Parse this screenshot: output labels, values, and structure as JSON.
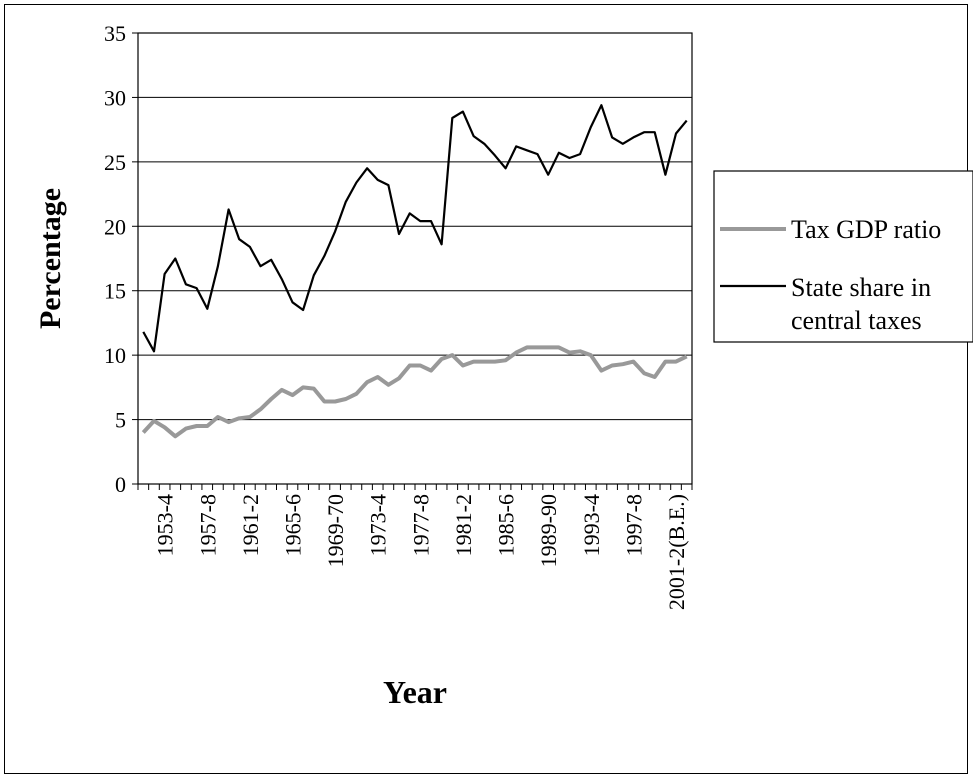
{
  "chart_data": {
    "type": "line",
    "xlabel": "Year",
    "ylabel": "Percentage",
    "ylim": [
      0,
      35
    ],
    "yticks": [
      0,
      5,
      10,
      15,
      20,
      25,
      30,
      35
    ],
    "grid": "horizontal",
    "legend_position": "right",
    "x_tick_labels": [
      "1953-4",
      "1957-8",
      "1961-2",
      "1965-6",
      "1969-70",
      "1973-4",
      "1977-8",
      "1981-2",
      "1985-6",
      "1989-90",
      "1993-4",
      "1997-8",
      "2001-2(B.E.)"
    ],
    "series": [
      {
        "name": "Tax GDP ratio",
        "color": "#999999",
        "values": [
          4.0,
          4.9,
          4.4,
          3.7,
          4.3,
          4.5,
          4.5,
          5.2,
          4.8,
          5.1,
          5.2,
          5.8,
          6.6,
          7.3,
          6.9,
          7.5,
          7.4,
          6.4,
          6.4,
          6.6,
          7.0,
          7.9,
          8.3,
          7.7,
          8.2,
          9.2,
          9.2,
          8.8,
          9.7,
          10.0,
          9.2,
          9.5,
          9.5,
          9.5,
          9.6,
          10.2,
          10.6,
          10.6,
          10.6,
          10.6,
          10.2,
          10.3,
          10.0,
          8.8,
          9.2,
          9.3,
          9.5,
          8.6,
          8.3,
          9.5,
          9.5,
          9.9
        ]
      },
      {
        "name": "State share in central taxes",
        "color": "#000000",
        "values": [
          11.8,
          10.3,
          16.3,
          17.5,
          15.5,
          15.2,
          13.6,
          16.9,
          21.3,
          19.0,
          18.4,
          16.9,
          17.4,
          15.9,
          14.1,
          13.5,
          16.2,
          17.7,
          19.6,
          21.9,
          23.4,
          24.5,
          23.6,
          23.2,
          19.4,
          21.0,
          20.4,
          20.4,
          18.6,
          28.4,
          28.9,
          27.0,
          26.4,
          25.5,
          24.5,
          26.2,
          25.9,
          25.6,
          24.0,
          25.7,
          25.3,
          25.6,
          27.7,
          29.4,
          26.9,
          26.4,
          26.9,
          27.3,
          27.3,
          24.0,
          27.2,
          28.2
        ]
      }
    ]
  }
}
